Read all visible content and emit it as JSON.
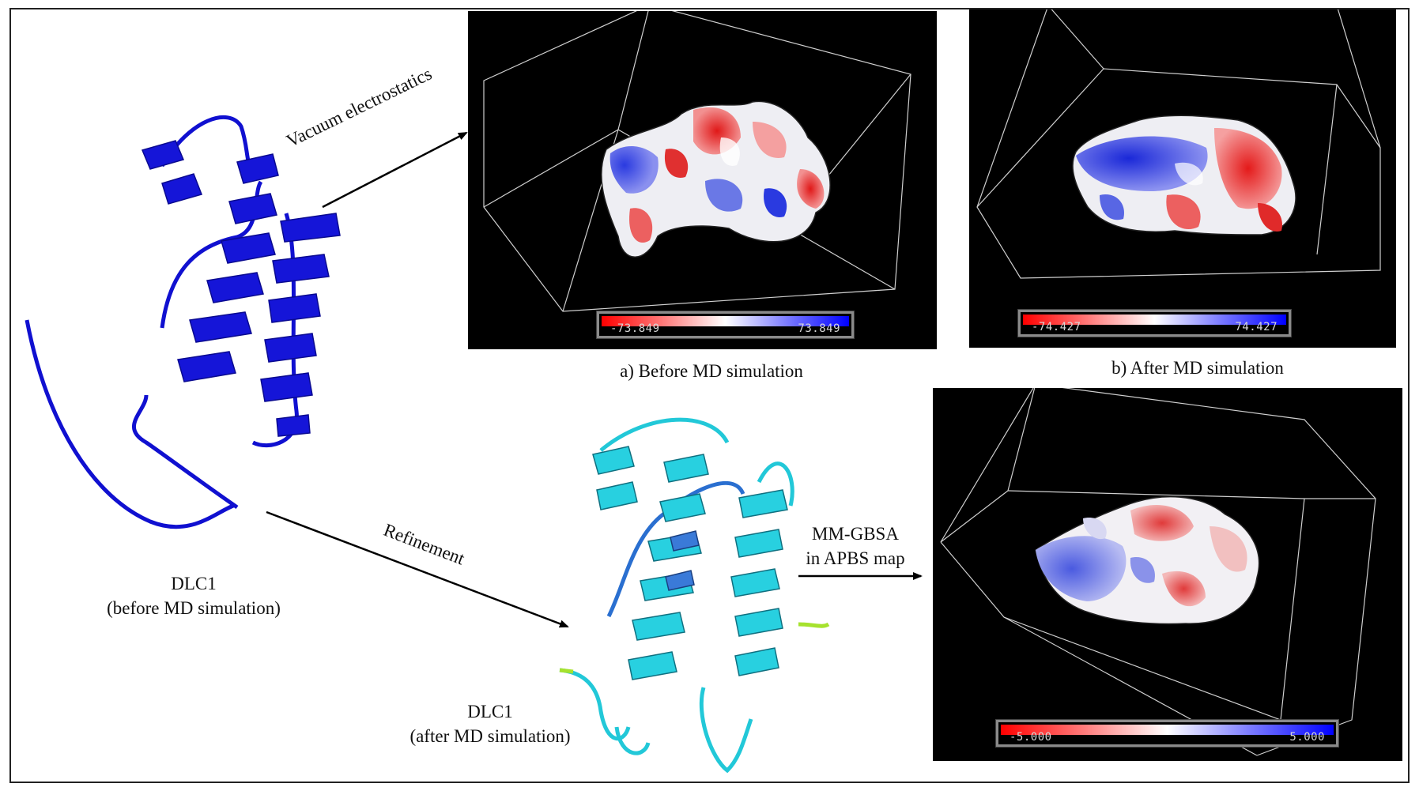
{
  "figure": {
    "label_vacuum": "Vacuum electrostatics",
    "label_refinement": "Refinement",
    "label_mmgbsa_line1": "MM-GBSA",
    "label_mmgbsa_line2": "in APBS map",
    "dlc1_before_line1": "DLC1",
    "dlc1_before_line2": "(before MD simulation)",
    "dlc1_after_line1": "DLC1",
    "dlc1_after_line2": "(after MD simulation)",
    "caption_a": "a) Before MD simulation",
    "caption_b": "b) After MD simulation"
  },
  "panels": {
    "a": {
      "scale_min": "-73.849",
      "scale_max": "73.849"
    },
    "b": {
      "scale_min": "-74.427",
      "scale_max": "74.427"
    },
    "c": {
      "scale_min": "-5.000",
      "scale_max": "5.000"
    }
  },
  "colors": {
    "protein_before": "#1010d0",
    "protein_after": "#22c8d8",
    "protein_after_accent": "#2a6fd0",
    "loop_highlight": "#a6e22e",
    "negative": "#ff0000",
    "positive": "#0000ff"
  }
}
